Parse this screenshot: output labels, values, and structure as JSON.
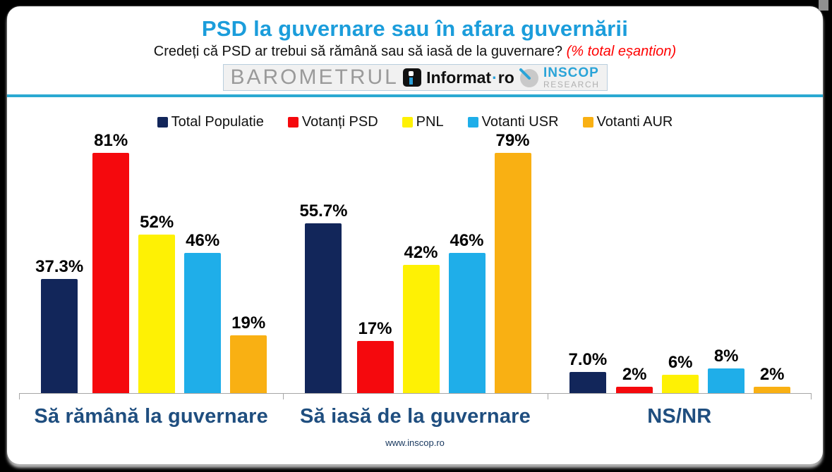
{
  "header": {
    "title": "PSD la guvernare sau în afara guvernării",
    "subtitle": "Credeți că PSD ar trebui să rămână sau să iasă de la guvernare?",
    "subtitle_note": "(% total eșantion)"
  },
  "logos": {
    "barometrul": "BAROMETRUL",
    "informat_name": "Informat",
    "informat_sep": "·",
    "informat_tld": "ro",
    "inscop_name": "INSCOP",
    "inscop_sub": "RESEARCH"
  },
  "page": {
    "footer": "www.inscop.ro"
  },
  "colors": {
    "title_blue": "#1b9ddb",
    "divider_cyan": "#2aa9d2",
    "category_blue": "#1f4e7f",
    "note_red": "#ff0000",
    "axis_gray": "#a6a6a6"
  },
  "chart_data": {
    "type": "bar",
    "title": "PSD la guvernare sau în afara guvernării",
    "xlabel": "",
    "ylabel": "% total eșantion",
    "ylim": [
      0,
      85
    ],
    "grid": false,
    "legend_position": "top",
    "categories": [
      "Să rămână la guvernare",
      "Să iasă de la guvernare",
      "NS/NR"
    ],
    "series": [
      {
        "name": "Total Populatie",
        "color": "#12265a",
        "values": [
          37.3,
          55.7,
          7.0
        ],
        "labels": [
          "37.3%",
          "55.7%",
          "7.0%"
        ]
      },
      {
        "name": "Votanți PSD",
        "color": "#f5090d",
        "values": [
          81,
          17,
          2
        ],
        "labels": [
          "81%",
          "17%",
          "2%"
        ]
      },
      {
        "name": "PNL",
        "color": "#fef104",
        "values": [
          52,
          42,
          6
        ],
        "labels": [
          "52%",
          "42%",
          "6%"
        ]
      },
      {
        "name": "Votanti USR",
        "color": "#1faee9",
        "values": [
          46,
          46,
          8
        ],
        "labels": [
          "46%",
          "46%",
          "8%"
        ]
      },
      {
        "name": "Votanti AUR",
        "color": "#f9b013",
        "values": [
          19,
          79,
          2
        ],
        "labels": [
          "19%",
          "79%",
          "2%"
        ]
      }
    ]
  }
}
